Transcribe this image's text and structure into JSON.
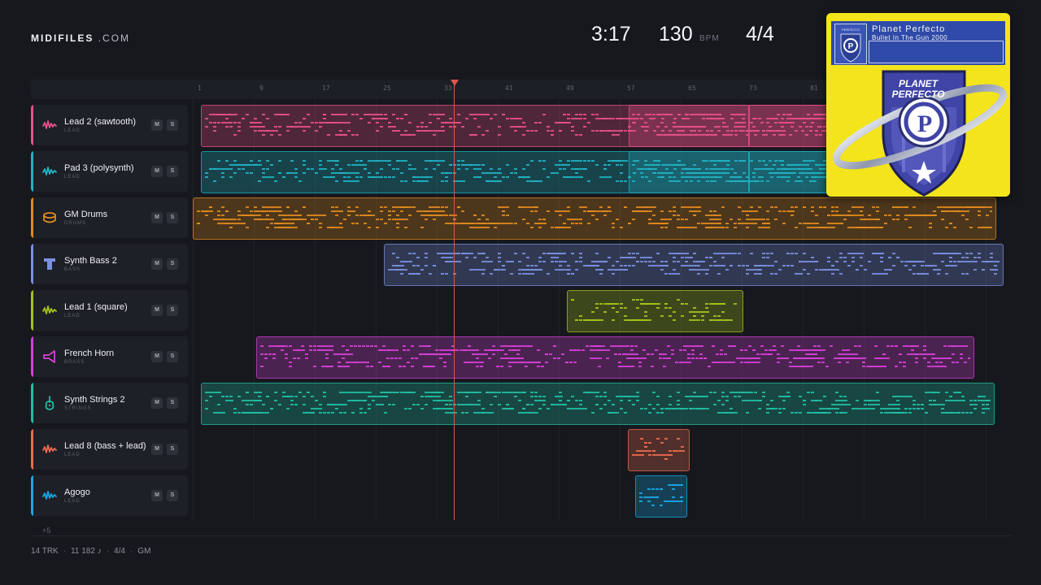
{
  "header": {
    "logo_bold": "MIDIFILES",
    "logo_light": ".COM",
    "time": "3:17",
    "tempo": "130",
    "tempo_unit": "BPM",
    "time_signature": "4/4"
  },
  "ruler": {
    "bars": [
      "1",
      "9",
      "17",
      "25",
      "33",
      "41",
      "49",
      "57",
      "65",
      "73",
      "81"
    ]
  },
  "tracks": [
    {
      "name": "Lead 2 (sawtooth)",
      "category": "LEAD",
      "color": "#e8508a",
      "icon": "wave-icon"
    },
    {
      "name": "Pad 3 (polysynth)",
      "category": "LEAD",
      "color": "#1fb3c4",
      "icon": "wave-icon"
    },
    {
      "name": "GM Drums",
      "category": "DRUMS",
      "color": "#e08a1e",
      "icon": "drum-icon"
    },
    {
      "name": "Synth Bass 2",
      "category": "BASS",
      "color": "#7a8fe0",
      "icon": "bass-icon"
    },
    {
      "name": "Lead 1 (square)",
      "category": "LEAD",
      "color": "#a6c21c",
      "icon": "wave-icon"
    },
    {
      "name": "French Horn",
      "category": "BRASS",
      "color": "#d63fd8",
      "icon": "horn-icon"
    },
    {
      "name": "Synth Strings 2",
      "category": "STRINGS",
      "color": "#1fbfa4",
      "icon": "guitar-icon"
    },
    {
      "name": "Lead 8 (bass + lead)",
      "category": "LEAD",
      "color": "#ec6a4f",
      "icon": "wave-icon"
    },
    {
      "name": "Agogo",
      "category": "LEAD",
      "color": "#1aa6e6",
      "icon": "wave-icon"
    }
  ],
  "mute_label": "M",
  "solo_label": "S",
  "more_tracks": "+5",
  "footer": {
    "tracks": "14 TRK",
    "notes": "11 182 ♪",
    "signature": "4/4",
    "standard": "GM"
  },
  "cover": {
    "artist": "Planet Perfecto",
    "title": "Bullet In The Gun 2000",
    "wordmark_1": "PLANET",
    "wordmark_2": "PERFECTO",
    "badge_text": "PERFECTO"
  }
}
